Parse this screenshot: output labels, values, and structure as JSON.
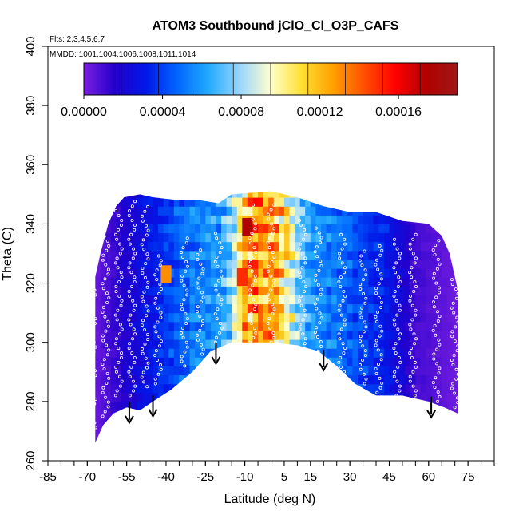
{
  "chart_data": {
    "type": "heatmap",
    "title": "ATOM3 Southbound jClO_Cl_O3P_CAFS",
    "subtitle_flights": "Flts: 2,3,4,5,6,7",
    "subtitle_dates": "MMDD: 1001,1004,1006,1008,1011,1014",
    "xlabel": "Latitude (deg N)",
    "ylabel": "Theta (C)",
    "xlim": [
      -85,
      85
    ],
    "ylim": [
      260,
      400
    ],
    "x_ticks": [
      "-85",
      "-70",
      "-55",
      "-40",
      "-25",
      "-10",
      "5",
      "15",
      "30",
      "45",
      "60",
      "75"
    ],
    "x_tick_values": [
      -85,
      -70,
      -55,
      -40,
      -25,
      -10,
      5,
      15,
      30,
      45,
      60,
      75
    ],
    "y_ticks": [
      "260",
      "280",
      "300",
      "320",
      "340",
      "360",
      "380",
      "400"
    ],
    "y_tick_values": [
      260,
      280,
      300,
      320,
      340,
      360,
      380,
      400
    ],
    "colorbar": {
      "min": 0,
      "max": 0.00019,
      "labels": [
        "0.00000",
        "0.00004",
        "0.00008",
        "0.00012",
        "0.00016"
      ],
      "label_values": [
        0,
        4e-05,
        8e-05,
        0.00012,
        0.00016
      ],
      "colors": [
        "#7B1FE0",
        "#2200CC",
        "#0018E8",
        "#0066FF",
        "#22AAFF",
        "#99D6FF",
        "#FFFFCC",
        "#FFE033",
        "#FFA000",
        "#FF5000",
        "#FF0000",
        "#B00000",
        "#A01818"
      ]
    },
    "top_boundary": [
      [
        -67,
        322
      ],
      [
        -65,
        330
      ],
      [
        -62,
        340
      ],
      [
        -59,
        346
      ],
      [
        -56,
        349
      ],
      [
        -50,
        350
      ],
      [
        -45,
        349
      ],
      [
        -35,
        348
      ],
      [
        -27,
        348
      ],
      [
        -20,
        347
      ],
      [
        -15,
        350
      ],
      [
        0,
        351
      ],
      [
        10,
        349
      ],
      [
        20,
        346
      ],
      [
        30,
        344
      ],
      [
        40,
        344
      ],
      [
        50,
        341
      ],
      [
        60,
        340
      ],
      [
        65,
        336
      ],
      [
        68,
        330
      ],
      [
        71,
        318
      ]
    ],
    "bottom_boundary": [
      [
        -67,
        266
      ],
      [
        -64,
        272
      ],
      [
        -60,
        276
      ],
      [
        -55,
        278
      ],
      [
        -50,
        277
      ],
      [
        -45,
        280
      ],
      [
        -38,
        284
      ],
      [
        -30,
        290
      ],
      [
        -23,
        297
      ],
      [
        -15,
        300
      ],
      [
        0,
        300
      ],
      [
        10,
        299
      ],
      [
        18,
        297
      ],
      [
        25,
        292
      ],
      [
        32,
        286
      ],
      [
        40,
        282
      ],
      [
        50,
        282
      ],
      [
        60,
        280
      ],
      [
        66,
        278
      ],
      [
        71,
        276
      ]
    ],
    "field_profile": [
      {
        "lat": -68,
        "value": 2e-06
      },
      {
        "lat": -60,
        "value": 1.2e-05
      },
      {
        "lat": -50,
        "value": 2.4e-05
      },
      {
        "lat": -40,
        "value": 3.8e-05
      },
      {
        "lat": -30,
        "value": 5.2e-05
      },
      {
        "lat": -20,
        "value": 6e-05
      },
      {
        "lat": -15,
        "value": 7.5e-05
      },
      {
        "lat": -10,
        "value": 0.00012
      },
      {
        "lat": -5,
        "value": 0.000135
      },
      {
        "lat": 0,
        "value": 0.000125
      },
      {
        "lat": 5,
        "value": 0.00011
      },
      {
        "lat": 10,
        "value": 8e-05
      },
      {
        "lat": 15,
        "value": 6e-05
      },
      {
        "lat": 25,
        "value": 5e-05
      },
      {
        "lat": 35,
        "value": 4e-05
      },
      {
        "lat": 45,
        "value": 3e-05
      },
      {
        "lat": 55,
        "value": 1e-05
      },
      {
        "lat": 70,
        "value": 3e-06
      }
    ],
    "hotspots": [
      {
        "lat": -9,
        "theta": 339,
        "value": 0.000175
      },
      {
        "lat": -11,
        "theta": 322,
        "value": 0.00015
      },
      {
        "lat": -40,
        "theta": 323,
        "value": 0.00013
      }
    ],
    "arrows_lat": [
      -54,
      -45,
      -21,
      20,
      61
    ],
    "flight_tracks": [
      {
        "lat": -68,
        "theta_range": [
          268,
          330
        ]
      },
      {
        "lat": -63,
        "theta_range": [
          275,
          340
        ]
      },
      {
        "lat": -58,
        "theta_range": [
          282,
          345
        ]
      },
      {
        "lat": -53,
        "theta_range": [
          282,
          348
        ]
      },
      {
        "lat": -48,
        "theta_range": [
          285,
          346
        ]
      },
      {
        "lat": -43,
        "theta_range": [
          286,
          330
        ]
      },
      {
        "lat": -33,
        "theta_range": [
          292,
          336
        ]
      },
      {
        "lat": -27,
        "theta_range": [
          296,
          332
        ]
      },
      {
        "lat": -20,
        "theta_range": [
          300,
          338
        ]
      },
      {
        "lat": -7,
        "theta_range": [
          300,
          348
        ]
      },
      {
        "lat": 0,
        "theta_range": [
          300,
          348
        ]
      },
      {
        "lat": 12,
        "theta_range": [
          298,
          342
        ]
      },
      {
        "lat": 18,
        "theta_range": [
          297,
          340
        ]
      },
      {
        "lat": 27,
        "theta_range": [
          290,
          338
        ]
      },
      {
        "lat": 35,
        "theta_range": [
          286,
          332
        ]
      },
      {
        "lat": 41,
        "theta_range": [
          283,
          334
        ]
      },
      {
        "lat": 48,
        "theta_range": [
          282,
          336
        ]
      },
      {
        "lat": 54,
        "theta_range": [
          282,
          338
        ]
      },
      {
        "lat": 63,
        "theta_range": [
          280,
          336
        ]
      },
      {
        "lat": 70,
        "theta_range": [
          278,
          322
        ]
      }
    ]
  }
}
